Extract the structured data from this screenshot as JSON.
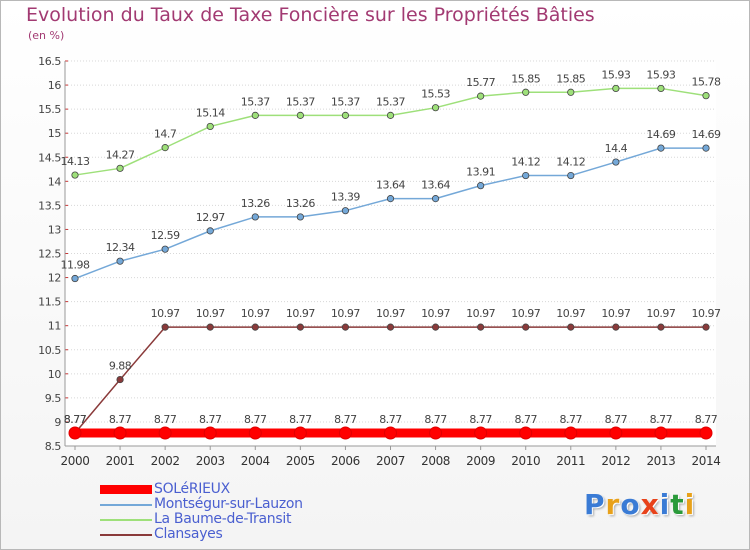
{
  "title": "Evolution du Taux de Taxe Foncière sur les Propriétés Bâties",
  "unit_label": "(en %)",
  "logo": {
    "text": "Proxiti",
    "letters": [
      "P",
      "r",
      "o",
      "x",
      "i",
      "t",
      "i"
    ],
    "colors": [
      "#3a7bd5",
      "#e8a11a",
      "#3a7bd5",
      "#e8421a",
      "#3a7bd5",
      "#2a9a3a",
      "#e8a11a"
    ]
  },
  "chart_data": {
    "type": "line",
    "title": "Evolution du Taux de Taxe Foncière sur les Propriétés Bâties",
    "ylabel": "(en %)",
    "xlabel": "",
    "x": [
      "2000",
      "2001",
      "2002",
      "2003",
      "2004",
      "2005",
      "2006",
      "2007",
      "2008",
      "2009",
      "2010",
      "2011",
      "2012",
      "2013",
      "2014"
    ],
    "ylim": [
      8.5,
      16.5
    ],
    "yticks": [
      "8.5",
      "9",
      "9.5",
      "10",
      "10.5",
      "11",
      "11.5",
      "12",
      "12.5",
      "13",
      "13.5",
      "14",
      "14.5",
      "15",
      "15.5",
      "16",
      "16.5"
    ],
    "grid": "horizontal",
    "legend_position": "bottom-left",
    "series": [
      {
        "name": "SOLéRIEUX",
        "color": "#ff0000",
        "values": [
          8.77,
          8.77,
          8.77,
          8.77,
          8.77,
          8.77,
          8.77,
          8.77,
          8.77,
          8.77,
          8.77,
          8.77,
          8.77,
          8.77,
          8.77
        ],
        "labels": [
          "8.77",
          "8.77",
          "8.77",
          "8.77",
          "8.77",
          "8.77",
          "8.77",
          "8.77",
          "8.77",
          "8.77",
          "8.77",
          "8.77",
          "8.77",
          "8.77",
          "8.77"
        ]
      },
      {
        "name": "Montségur-sur-Lauzon",
        "color": "#74a8d8",
        "values": [
          11.98,
          12.34,
          12.59,
          12.97,
          13.26,
          13.26,
          13.39,
          13.64,
          13.64,
          13.91,
          14.12,
          14.12,
          14.4,
          14.69,
          14.69
        ],
        "labels": [
          "11.98",
          "12.34",
          "12.59",
          "12.97",
          "13.26",
          "13.26",
          "13.39",
          "13.64",
          "13.64",
          "13.91",
          "14.12",
          "14.12",
          "14.4",
          "14.69",
          "14.69"
        ]
      },
      {
        "name": "La Baume-de-Transit",
        "color": "#9ee07a",
        "values": [
          14.13,
          14.27,
          14.7,
          15.14,
          15.37,
          15.37,
          15.37,
          15.37,
          15.53,
          15.77,
          15.85,
          15.85,
          15.93,
          15.93,
          15.78
        ],
        "labels": [
          "14.13",
          "14.27",
          "14.7",
          "15.14",
          "15.37",
          "15.37",
          "15.37",
          "15.37",
          "15.53",
          "15.77",
          "15.85",
          "15.85",
          "15.93",
          "15.93",
          "15.78"
        ]
      },
      {
        "name": "Clansayes",
        "color": "#8a3a3a",
        "values": [
          8.77,
          9.88,
          10.97,
          10.97,
          10.97,
          10.97,
          10.97,
          10.97,
          10.97,
          10.97,
          10.97,
          10.97,
          10.97,
          10.97,
          10.97
        ],
        "labels": [
          "8.77",
          "9.88",
          "10.97",
          "10.97",
          "10.97",
          "10.97",
          "10.97",
          "10.97",
          "10.97",
          "10.97",
          "10.97",
          "10.97",
          "10.97",
          "10.97",
          "10.97"
        ]
      }
    ]
  }
}
